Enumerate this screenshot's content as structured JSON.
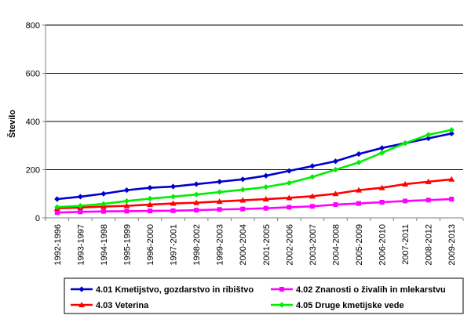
{
  "chart_data": {
    "type": "line",
    "ylabel": "Število",
    "xlabel": "",
    "ylim": [
      0,
      800
    ],
    "yticks": [
      0,
      200,
      400,
      600,
      800
    ],
    "grid": true,
    "legend_position": "bottom",
    "categories": [
      "1992-1996",
      "1993-1997",
      "1994-1998",
      "1995-1999",
      "1996-2000",
      "1997-2001",
      "1998-2002",
      "1999-2003",
      "2000-2004",
      "2001-2005",
      "2002-2006",
      "2003-2007",
      "2004-2008",
      "2005-2009",
      "2006-2010",
      "2007-2011",
      "2008-2012",
      "2009-2013"
    ],
    "series": [
      {
        "name": "4.01 Kmetijstvo, gozdarstvo in ribištvo",
        "color": "#0000cc",
        "marker": "diamond",
        "values": [
          78,
          88,
          100,
          115,
          125,
          130,
          140,
          150,
          160,
          175,
          195,
          215,
          235,
          265,
          290,
          310,
          330,
          350
        ]
      },
      {
        "name": "4.02 Znanosti o živalih in mlekarstvu",
        "color": "#ff00ff",
        "marker": "square",
        "values": [
          22,
          25,
          27,
          28,
          29,
          30,
          32,
          35,
          37,
          40,
          44,
          48,
          55,
          60,
          65,
          70,
          74,
          78
        ]
      },
      {
        "name": "4.03 Veterina",
        "color": "#ff0000",
        "marker": "triangle",
        "values": [
          40,
          43,
          47,
          50,
          55,
          60,
          63,
          68,
          73,
          78,
          83,
          90,
          100,
          115,
          125,
          140,
          150,
          160
        ]
      },
      {
        "name": "4.05 Druge kmetijske vede",
        "color": "#00ee00",
        "marker": "diamond",
        "values": [
          45,
          50,
          58,
          70,
          80,
          88,
          97,
          107,
          117,
          128,
          145,
          170,
          200,
          230,
          270,
          310,
          345,
          365
        ]
      }
    ]
  }
}
